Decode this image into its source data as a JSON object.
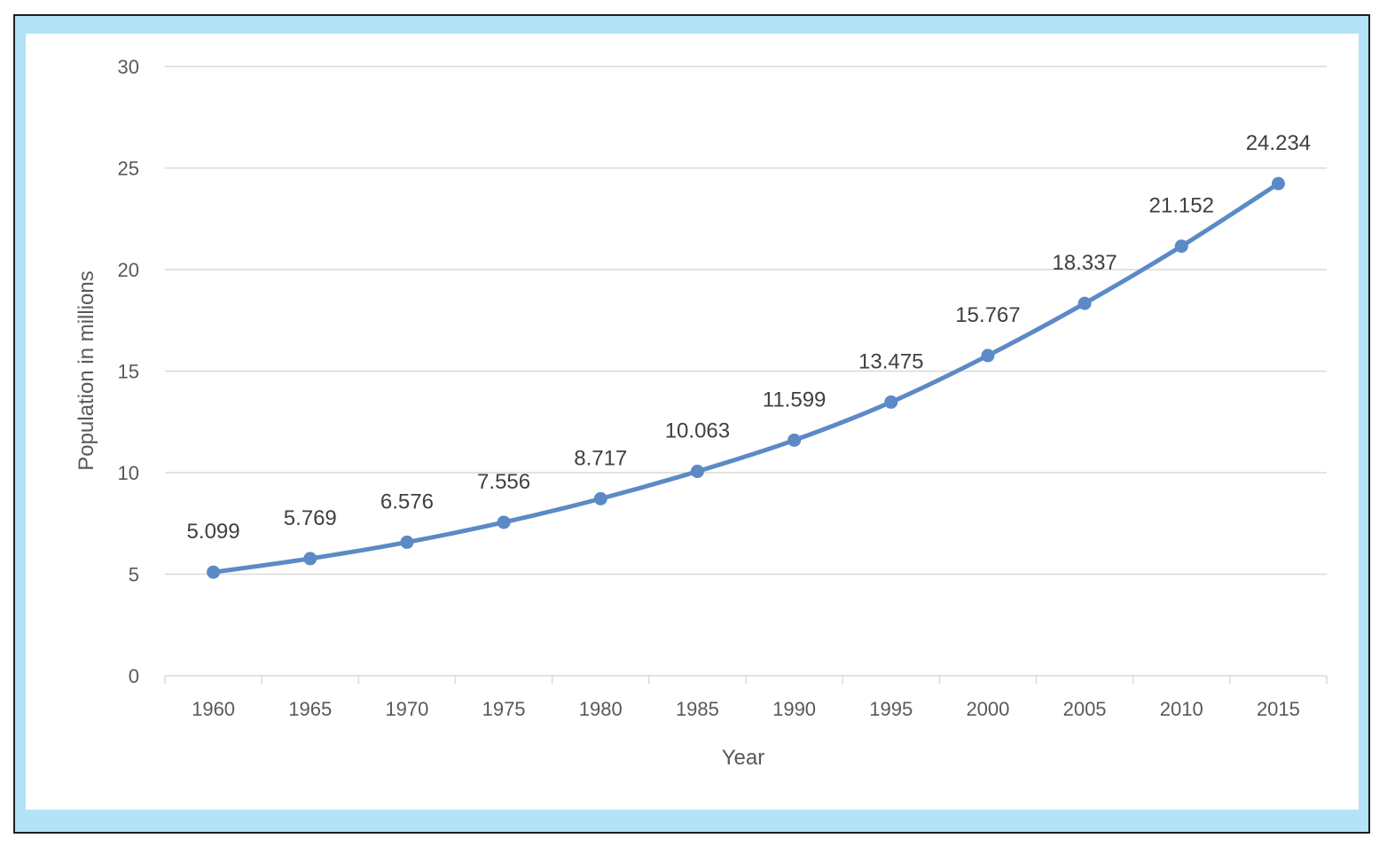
{
  "colors": {
    "frame_fill": "#b3e3f7",
    "series_line": "#5b8ac6",
    "grid": "#d9d9d9"
  },
  "chart_data": {
    "type": "line",
    "title": "",
    "xlabel": "Year",
    "ylabel": "Population in millions",
    "ylim": [
      0,
      30
    ],
    "yticks": [
      0,
      5,
      10,
      15,
      20,
      25,
      30
    ],
    "grid": true,
    "legend": "none",
    "categories": [
      "1960",
      "1965",
      "1970",
      "1975",
      "1980",
      "1985",
      "1990",
      "1995",
      "2000",
      "2005",
      "2010",
      "2015"
    ],
    "series": [
      {
        "values": [
          5.099,
          5.769,
          6.576,
          7.556,
          8.717,
          10.063,
          11.599,
          13.475,
          15.767,
          18.337,
          21.152,
          24.234
        ],
        "labels": [
          "5.099",
          "5.769",
          "6.576",
          "7.556",
          "8.717",
          "10.063",
          "11.599",
          "13.475",
          "15.767",
          "18.337",
          "21.152",
          "24.234"
        ]
      }
    ]
  }
}
